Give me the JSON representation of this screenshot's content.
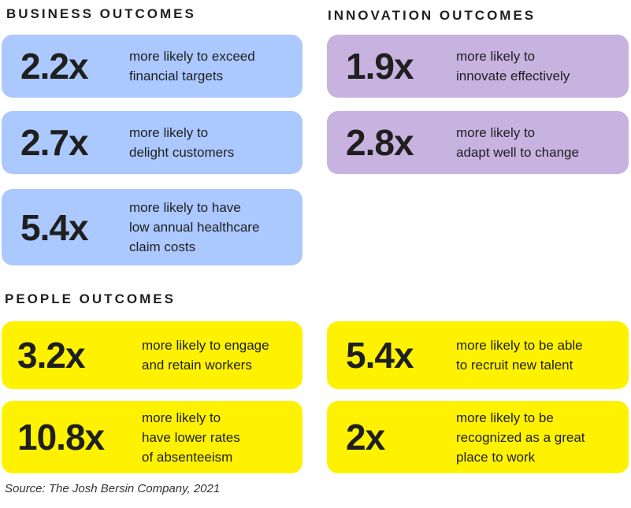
{
  "sections": {
    "business": "BUSINESS OUTCOMES",
    "innovation": "INNOVATION OUTCOMES",
    "people": "PEOPLE OUTCOMES"
  },
  "colors": {
    "business": "#abc8ff",
    "innovation": "#c8b2e0",
    "people": "#fff200"
  },
  "business_cards": [
    {
      "value": "2.2x",
      "lines": [
        "more likely to exceed",
        "financial targets"
      ]
    },
    {
      "value": "2.7x",
      "lines": [
        "more likely to",
        "delight customers"
      ]
    },
    {
      "value": "5.4x",
      "lines": [
        "more likely to have",
        "low annual healthcare",
        "claim costs"
      ]
    }
  ],
  "innovation_cards": [
    {
      "value": "1.9x",
      "lines": [
        "more likely to",
        "innovate effectively"
      ]
    },
    {
      "value": "2.8x",
      "lines": [
        "more likely to",
        "adapt well to change"
      ]
    }
  ],
  "people_cards": [
    {
      "value": "3.2x",
      "lines": [
        "more likely to engage",
        "and retain workers"
      ]
    },
    {
      "value": "10.8x",
      "lines": [
        "more likely to",
        "have lower rates",
        "of absenteeism"
      ]
    },
    {
      "value": "5.4x",
      "lines": [
        "more likely to be able",
        "to recruit new talent"
      ]
    },
    {
      "value": "2x",
      "lines": [
        "more likely to be",
        "recognized as a great",
        "place to work"
      ]
    }
  ],
  "source": "Source: The Josh Bersin Company, 2021"
}
